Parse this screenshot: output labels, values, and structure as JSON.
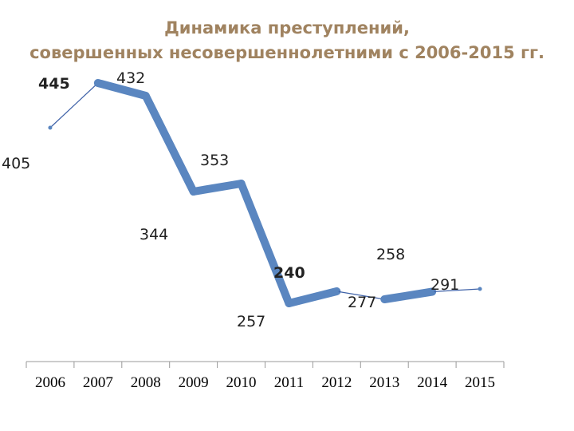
{
  "chart_data": {
    "type": "line",
    "title": [
      "Динамика преступлений,",
      "совершенных несовершеннолетними с 2006-2015 гг."
    ],
    "categories": [
      "2006",
      "2007",
      "2008",
      "2009",
      "2010",
      "2011",
      "2012",
      "2013",
      "2014",
      "2015"
    ],
    "values": [
      405,
      445,
      432,
      344,
      353,
      240,
      257,
      277,
      258,
      291
    ],
    "value_labels": [
      {
        "text": "445",
        "color": "#b22222"
      },
      {
        "text": "432",
        "color": "#222222"
      },
      {
        "text": "405",
        "color": "#222222"
      },
      {
        "text": "353",
        "color": "#222222"
      },
      {
        "text": "344",
        "color": "#222222"
      },
      {
        "text": "240",
        "color": "#2eaa2e"
      },
      {
        "text": "258",
        "color": "#222222"
      },
      {
        "text": "291",
        "color": "#222222"
      },
      {
        "text": "277",
        "color": "#222222"
      },
      {
        "text": "257",
        "color": "#222222"
      }
    ],
    "series_color": "#5a86c0",
    "grid": false,
    "legend": "none"
  }
}
